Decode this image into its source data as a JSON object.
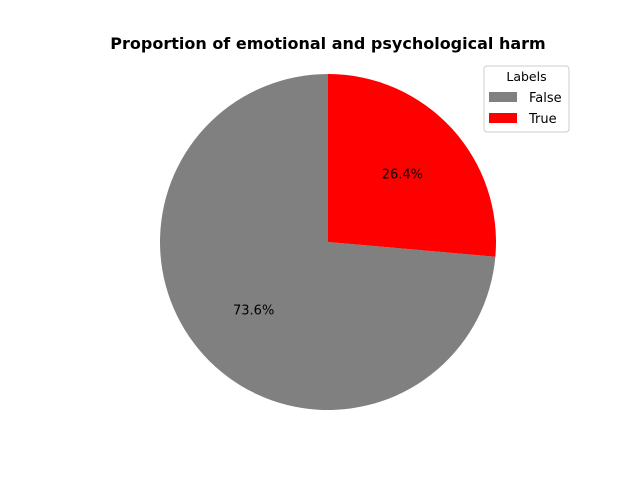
{
  "chart_data": {
    "type": "pie",
    "title": "Proportion of emotional and psychological harm",
    "labels": [
      "False",
      "True"
    ],
    "values": [
      73.6,
      26.4
    ],
    "value_labels": [
      "73.6%",
      "26.4%"
    ],
    "colors": [
      "#808080",
      "#ff0000"
    ],
    "start_angle_deg": 90,
    "direction": "counterclockwise",
    "legend": {
      "title": "Labels",
      "position": "top-right"
    }
  }
}
